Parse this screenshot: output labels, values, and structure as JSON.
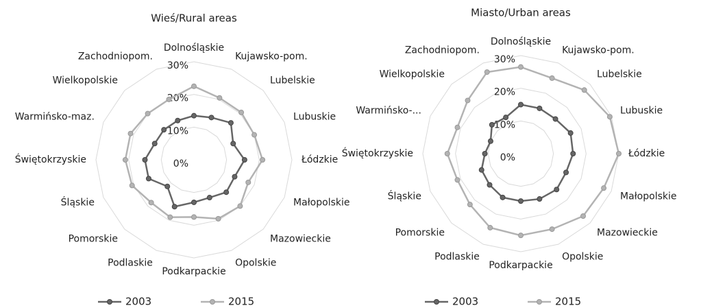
{
  "chart_data": [
    {
      "type": "radar",
      "title": "Wieś/Rural areas",
      "categories": [
        "Dolnośląskie",
        "Kujawsko-pom.",
        "Lubelskie",
        "Lubuskie",
        "Łódzkie",
        "Małopolskie",
        "Mazowieckie",
        "Opolskie",
        "Podkarpackie",
        "Podlaskie",
        "Pomorskie",
        "Śląskie",
        "Świętokrzyskie",
        "Warmińsko-maz.",
        "Wielkopolskie",
        "Zachodniopom."
      ],
      "series": [
        {
          "name": "2003",
          "color": "#666666",
          "values": [
            13.5,
            14,
            16,
            13,
            15.5,
            13.5,
            14,
            12.5,
            13,
            15.5,
            11.5,
            15,
            15,
            13,
            13,
            13
          ]
        },
        {
          "name": "2015",
          "color": "#b3b3b3",
          "values": [
            22.5,
            20.5,
            20.5,
            20,
            21,
            18,
            20,
            19.5,
            17.5,
            19,
            18.5,
            20.5,
            21,
            21,
            20,
            20
          ]
        }
      ],
      "ylim": [
        0,
        30
      ],
      "yticks": [
        {
          "value": 0,
          "label": "0%"
        },
        {
          "value": 10,
          "label": "10%"
        },
        {
          "value": 20,
          "label": "20%"
        },
        {
          "value": 30,
          "label": "30%"
        }
      ],
      "grid": true
    },
    {
      "type": "radar",
      "title": "Miasto/Urban areas",
      "categories": [
        "Dolnośląskie",
        "Kujawsko-pom.",
        "Lubelskie",
        "Lubuskie",
        "Łódzkie",
        "Małopolskie",
        "Mazowieckie",
        "Opolskie",
        "Podkarpackie",
        "Podlaskie",
        "Pomorskie",
        "Śląskie",
        "Świętokrzyskie",
        "Warmińsko-...",
        "Wielkopolskie",
        "Zachodniopom."
      ],
      "series": [
        {
          "name": "2003",
          "color": "#666666",
          "values": [
            15,
            15,
            15,
            16.5,
            16,
            15,
            15.5,
            15,
            14.5,
            14.5,
            13.5,
            13,
            11,
            10,
            12.5,
            12
          ]
        },
        {
          "name": "2015",
          "color": "#b3b3b3",
          "values": [
            26.5,
            25,
            27.5,
            29.5,
            30,
            27.5,
            27,
            25,
            25,
            24.5,
            22,
            21,
            22.5,
            21,
            23,
            27
          ]
        }
      ],
      "ylim": [
        0,
        30
      ],
      "yticks": [
        {
          "value": 0,
          "label": "0%"
        },
        {
          "value": 10,
          "label": "10%"
        },
        {
          "value": 20,
          "label": "20%"
        },
        {
          "value": 30,
          "label": "30%"
        }
      ],
      "grid": true
    }
  ]
}
